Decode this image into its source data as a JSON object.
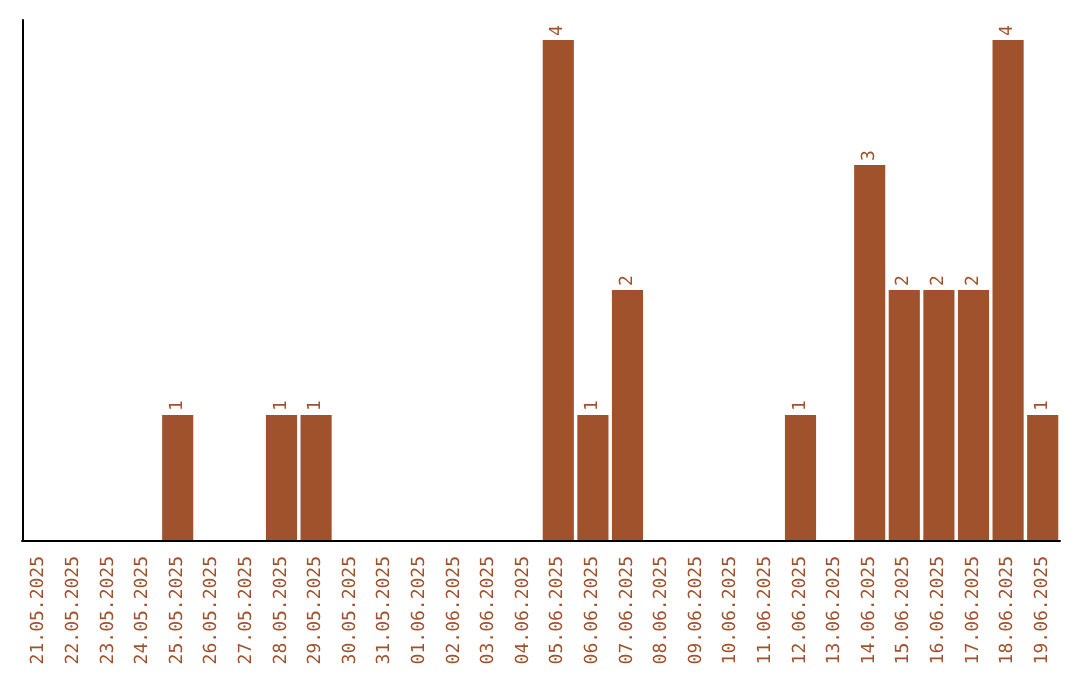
{
  "chart_data": {
    "type": "bar",
    "categories": [
      "21.05.2025",
      "22.05.2025",
      "23.05.2025",
      "24.05.2025",
      "25.05.2025",
      "26.05.2025",
      "27.05.2025",
      "28.05.2025",
      "29.05.2025",
      "30.05.2025",
      "31.05.2025",
      "01.06.2025",
      "02.06.2025",
      "03.06.2025",
      "04.06.2025",
      "05.06.2025",
      "06.06.2025",
      "07.06.2025",
      "08.06.2025",
      "09.06.2025",
      "10.06.2025",
      "11.06.2025",
      "12.06.2025",
      "13.06.2025",
      "14.06.2025",
      "15.06.2025",
      "16.06.2025",
      "17.06.2025",
      "18.06.2025",
      "19.06.2025"
    ],
    "values": [
      0,
      0,
      0,
      0,
      1,
      0,
      0,
      1,
      1,
      0,
      0,
      0,
      0,
      0,
      0,
      4,
      1,
      2,
      0,
      0,
      0,
      0,
      1,
      0,
      3,
      2,
      2,
      2,
      4,
      1
    ],
    "value_labels": [
      null,
      null,
      null,
      null,
      "1",
      null,
      null,
      "1",
      "1",
      null,
      null,
      null,
      null,
      null,
      null,
      "4",
      "1",
      "2",
      null,
      null,
      null,
      null,
      "1",
      null,
      "3",
      "2",
      "2",
      "2",
      "4",
      "1"
    ],
    "color": "#a0522d",
    "grid": false
  }
}
